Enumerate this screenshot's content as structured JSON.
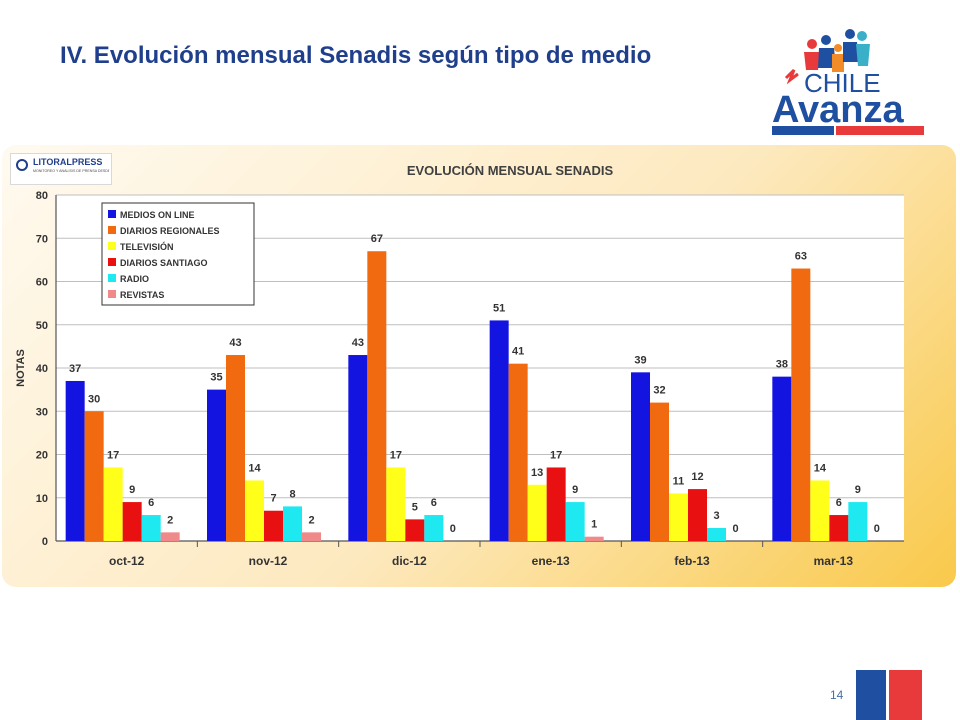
{
  "slide": {
    "title": "IV. Evolución mensual Senadis según tipo de medio",
    "page_number": "14"
  },
  "logo": {
    "line1": "CHILE",
    "line2": "Avanza",
    "colors": {
      "blue": "#1f4fa0",
      "red": "#e83a3a",
      "people": [
        "#e83a3a",
        "#1f4fa0",
        "#f28c28",
        "#1f4fa0",
        "#3ab0c8"
      ]
    }
  },
  "source": {
    "name": "LITORALPRESS",
    "tagline": "MONITOREO Y ANÁLISIS DE PRENSA DESDE 1994"
  },
  "chart_data": {
    "type": "bar",
    "title": "EVOLUCIÓN MENSUAL SENADIS",
    "ylabel": "NOTAS",
    "xlabel": "",
    "ylim": [
      0,
      80
    ],
    "yticks": [
      0,
      10,
      20,
      30,
      40,
      50,
      60,
      70,
      80
    ],
    "grid": true,
    "legend_position": "top-left",
    "categories": [
      "oct-12",
      "nov-12",
      "dic-12",
      "ene-13",
      "feb-13",
      "mar-13"
    ],
    "series": [
      {
        "name": "MEDIOS ON LINE",
        "color": "#1414e0",
        "values": [
          37,
          35,
          43,
          51,
          39,
          38
        ]
      },
      {
        "name": "DIARIOS REGIONALES",
        "color": "#f26a10",
        "values": [
          30,
          43,
          67,
          41,
          32,
          63
        ]
      },
      {
        "name": "TELEVISIÓN",
        "color": "#ffff1a",
        "values": [
          17,
          14,
          17,
          13,
          11,
          14
        ]
      },
      {
        "name": "DIARIOS SANTIAGO",
        "color": "#e81010",
        "values": [
          9,
          7,
          5,
          17,
          12,
          6
        ]
      },
      {
        "name": "RADIO",
        "color": "#1ee8f0",
        "values": [
          6,
          8,
          6,
          9,
          3,
          9
        ]
      },
      {
        "name": "REVISTAS",
        "color": "#f08a8a",
        "values": [
          2,
          2,
          0,
          1,
          0,
          0
        ]
      }
    ]
  }
}
